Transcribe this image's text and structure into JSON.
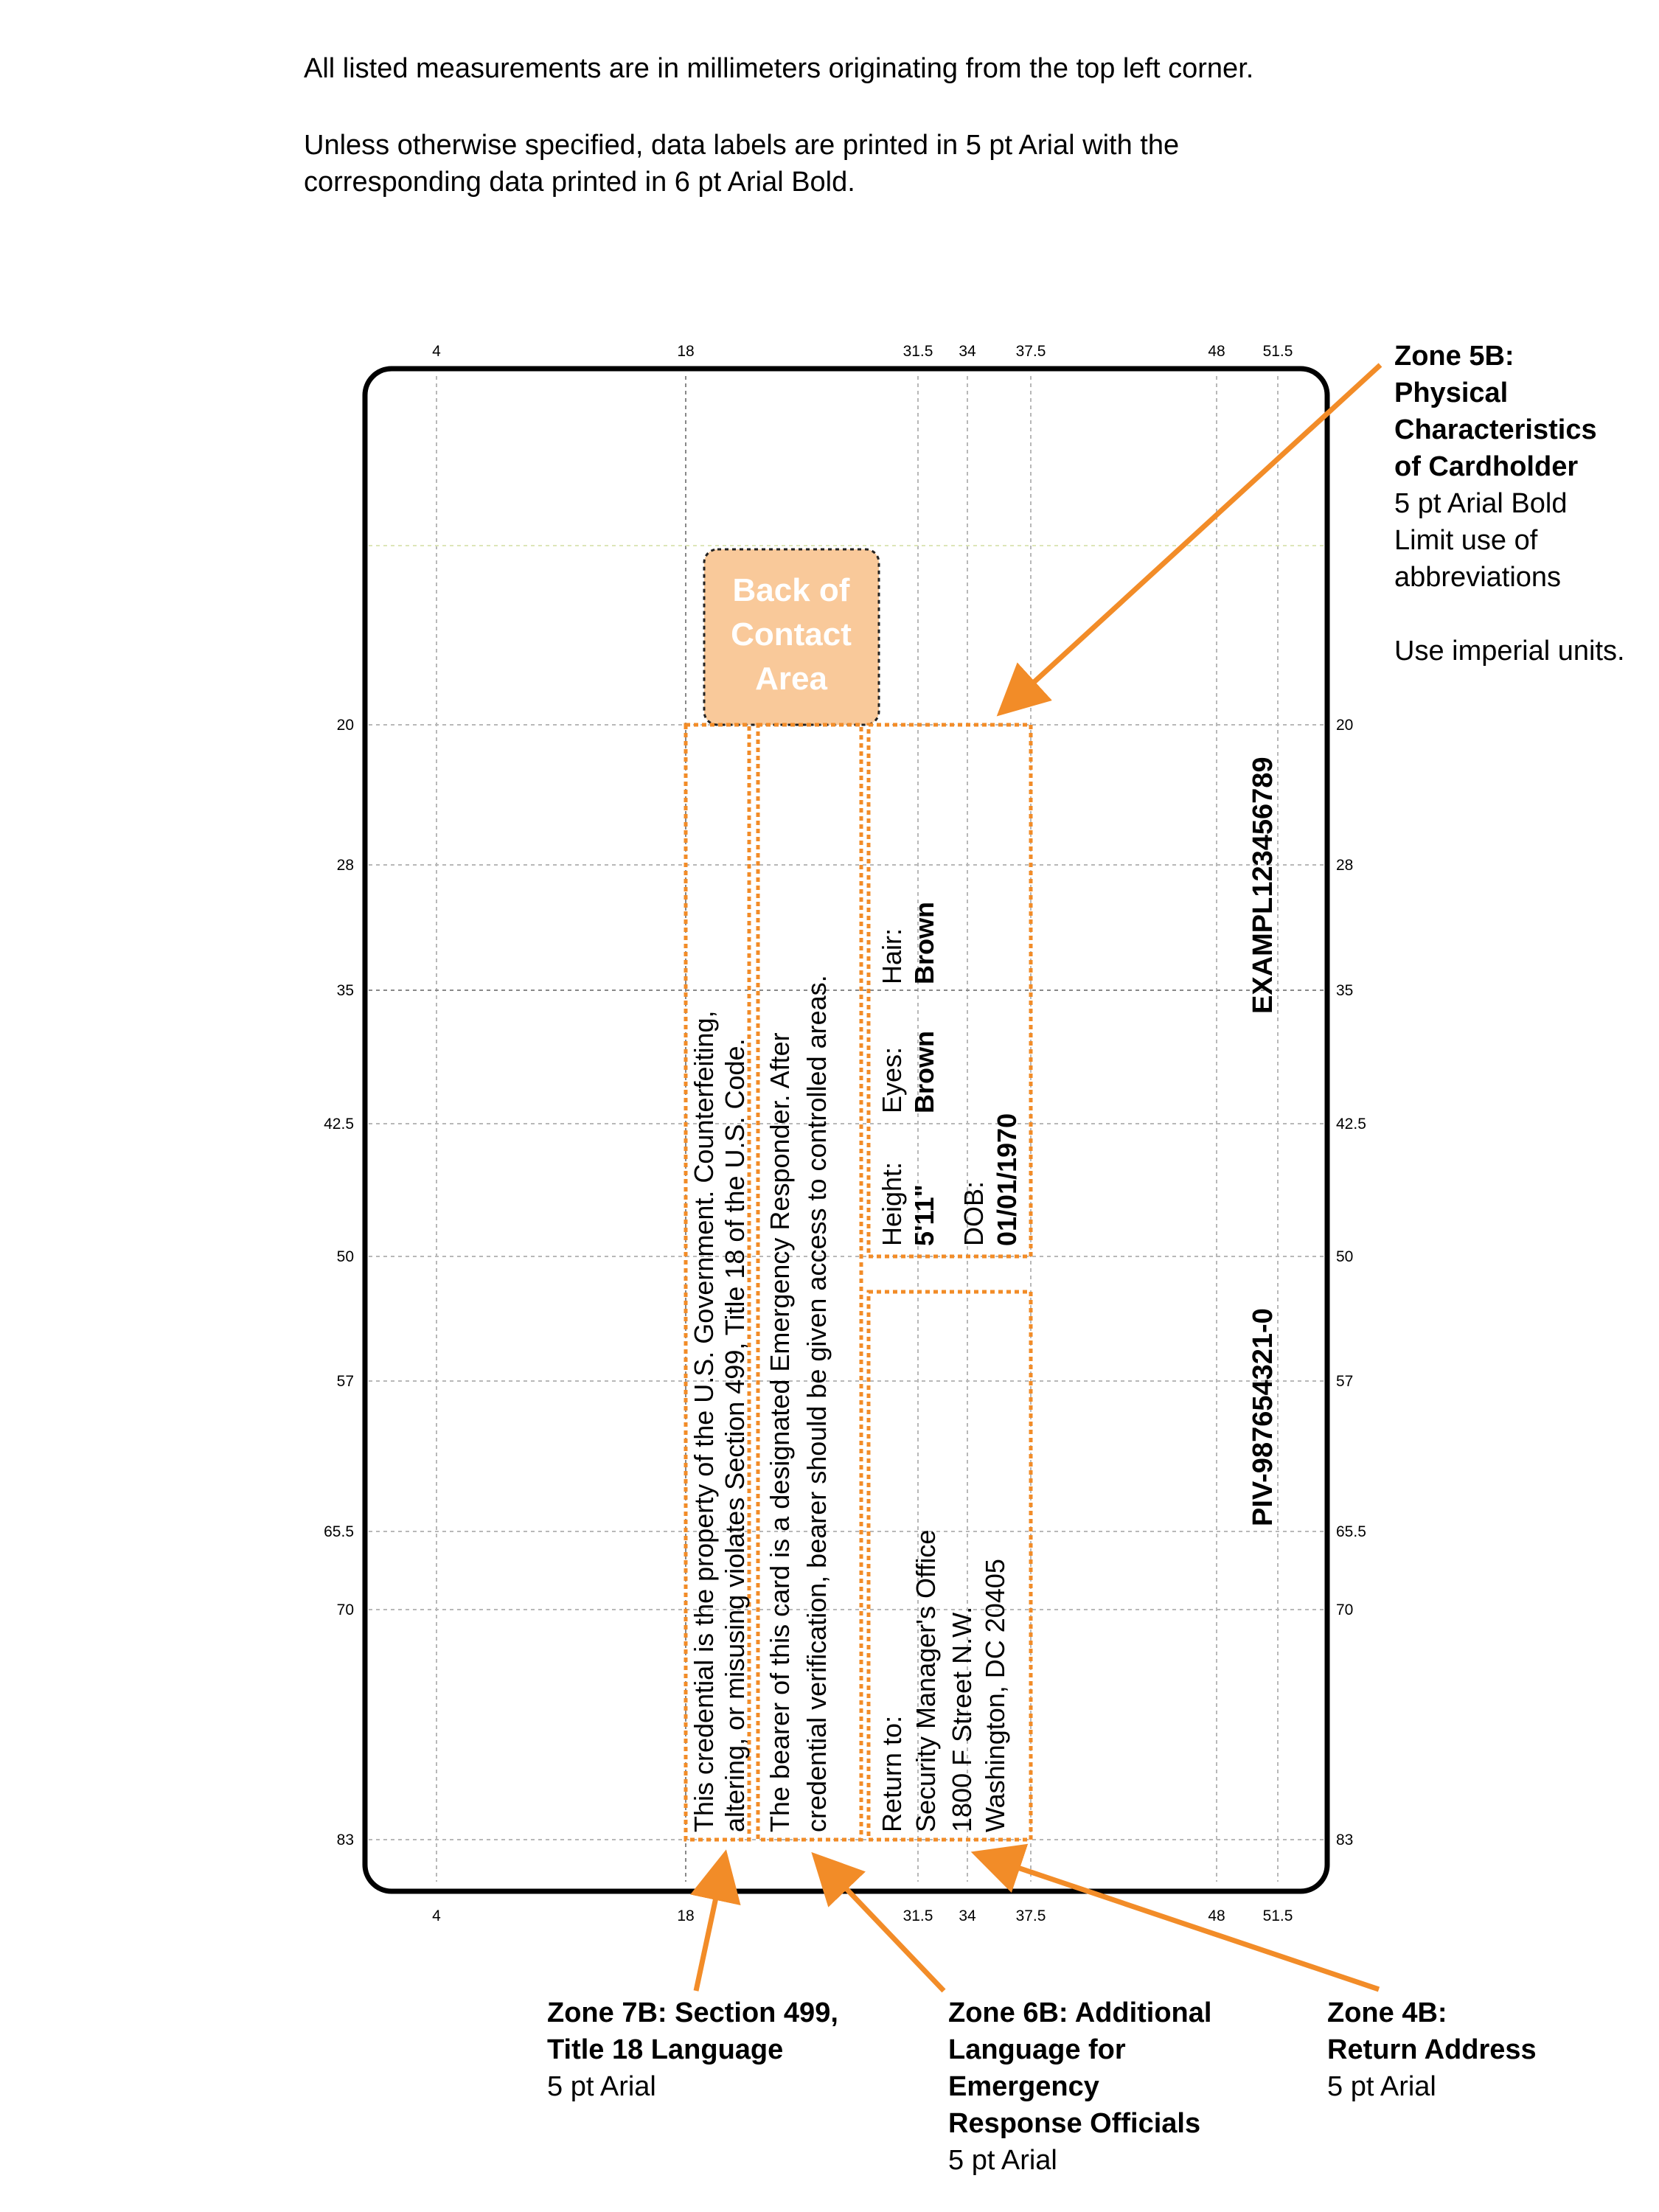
{
  "intro": {
    "line1": "All listed measurements are in millimeters originating from the top left corner.",
    "line2": "Unless otherwise specified, data labels are printed in 5 pt Arial with the",
    "line3": "corresponding data printed in 6 pt Arial Bold."
  },
  "ruler": {
    "columns": [
      "4",
      "18",
      "31.5",
      "34",
      "37.5",
      "48",
      "51.5"
    ],
    "rows": [
      "20",
      "28",
      "35",
      "42.5",
      "50",
      "57",
      "65.5",
      "70",
      "83"
    ]
  },
  "contact_area": {
    "line1": "Back of",
    "line2": "Contact",
    "line3": "Area"
  },
  "zone7b_text": {
    "line1": "This credential is the property of the U.S. Government. Counterfeiting,",
    "line2": "altering, or misusing violates Section 499, Title 18 of the U.S. Code."
  },
  "zone6b_text": {
    "line1": "The bearer of this card is a designated Emergency Responder. After",
    "line2": "credential verification, bearer should be given access to controlled areas."
  },
  "physical": {
    "height_label": "Height:",
    "height_value": "5'11\"",
    "eyes_label": "Eyes:",
    "eyes_value": "Brown",
    "hair_label": "Hair:",
    "hair_value": "Brown",
    "dob_label": "DOB:",
    "dob_value": "01/01/1970"
  },
  "return_address": {
    "line1": "Return to:",
    "line2": "Security Manager's Office",
    "line3": "1800 F Street N.W.",
    "line4": "Washington, DC 20405"
  },
  "identifiers": {
    "agency_card_serial": "EXAMPL123456789",
    "piv_number": "PIV-987654321-0"
  },
  "callouts": {
    "zone5b": {
      "title1": "Zone 5B:",
      "title2": "Physical",
      "title3": "Characteristics",
      "title4": "of Cardholder",
      "note1": "5 pt Arial Bold",
      "note2": "Limit use of",
      "note3": "abbreviations",
      "note4": "Use imperial units."
    },
    "zone7b": {
      "title1": "Zone 7B: Section 499,",
      "title2": "Title 18 Language",
      "note1": "5 pt Arial"
    },
    "zone6b": {
      "title1": "Zone 6B: Additional",
      "title2": "Language for",
      "title3": "Emergency",
      "title4": "Response Officials",
      "note1": "5 pt Arial"
    },
    "zone4b": {
      "title1": "Zone 4B:",
      "title2": "Return Address",
      "note1": "5 pt Arial"
    }
  },
  "colors": {
    "accent_orange": "#F28C28",
    "contact_fill": "#F9C99A",
    "grid": "#B0B0B0",
    "card_border": "#000000"
  }
}
